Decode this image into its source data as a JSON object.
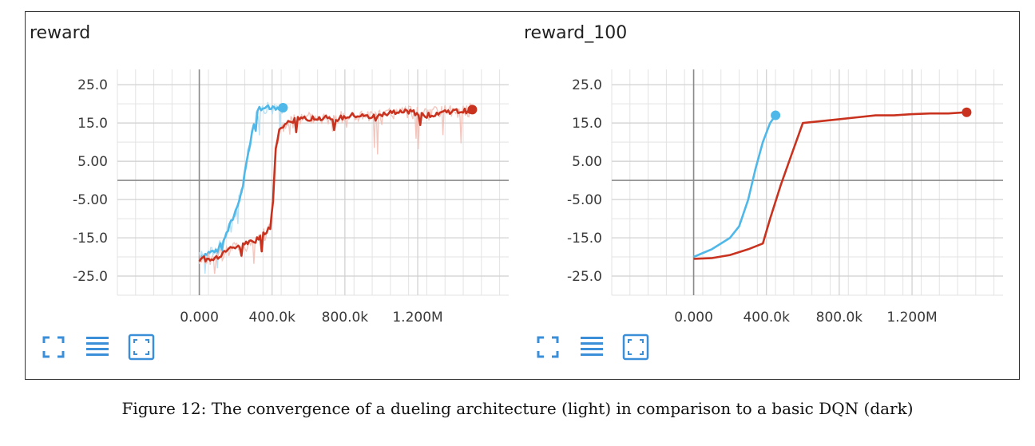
{
  "caption": "Figure 12: The convergence of a dueling architecture (light) in comparison to a basic DQN (dark)",
  "colors": {
    "light": "#4fb8e8",
    "dark": "#c8321e",
    "light_noise": "#a9dcf5",
    "dark_noise": "#f2bcb2",
    "tool": "#3b8fd9"
  },
  "toolbar": {
    "icons": [
      "fullscreen-icon",
      "list-icon",
      "fit-domain-icon"
    ]
  },
  "chart_data": [
    {
      "type": "line",
      "title": "reward",
      "xlim": [
        -450000,
        1700000
      ],
      "ylim": [
        -30,
        29
      ],
      "x_ticks": [
        0,
        400000,
        800000,
        1200000
      ],
      "x_tick_labels": [
        "0.000",
        "400.0k",
        "800.0k",
        "1.200M"
      ],
      "y_ticks": [
        25,
        15,
        5,
        -5,
        -15,
        -25
      ],
      "y_tick_labels": [
        "25.0",
        "15.0",
        "5.00",
        "-5.00",
        "-15.0",
        "-25.0"
      ],
      "grid": true,
      "series": [
        {
          "style": "light",
          "x": [
            0,
            50000,
            100000,
            150000,
            200000,
            230000,
            260000,
            300000,
            330000,
            370000,
            420000,
            460000
          ],
          "y": [
            -20,
            -19,
            -18,
            -14,
            -8,
            -3,
            5,
            15,
            19,
            19,
            18.5,
            19
          ]
        },
        {
          "style": "dark",
          "x": [
            0,
            60000,
            120000,
            180000,
            240000,
            300000,
            360000,
            390000,
            405000,
            420000,
            440000,
            480000,
            550000,
            650000,
            750000,
            850000,
            950000,
            1050000,
            1150000,
            1250000,
            1350000,
            1450000,
            1500000
          ],
          "y": [
            -20.5,
            -20.5,
            -19.5,
            -17.5,
            -17,
            -16,
            -14,
            -12,
            -5,
            8,
            13,
            15,
            16,
            16.5,
            16,
            17,
            16.5,
            17.5,
            18,
            17,
            18,
            18,
            18.5
          ]
        }
      ]
    },
    {
      "type": "line",
      "title": "reward_100",
      "xlim": [
        -450000,
        1700000
      ],
      "ylim": [
        -30,
        29
      ],
      "x_ticks": [
        0,
        400000,
        800000,
        1200000
      ],
      "x_tick_labels": [
        "0.000",
        "400.0k",
        "800.0k",
        "1.200M"
      ],
      "y_ticks": [
        25,
        15,
        5,
        -5,
        -15,
        -25
      ],
      "y_tick_labels": [
        "25.0",
        "15.0",
        "5.00",
        "-5.00",
        "-15.0",
        "-25.0"
      ],
      "grid": true,
      "series": [
        {
          "style": "light",
          "x": [
            0,
            100000,
            200000,
            250000,
            300000,
            340000,
            380000,
            420000,
            450000
          ],
          "y": [
            -20,
            -18,
            -15,
            -12,
            -5,
            3,
            10,
            15,
            17
          ]
        },
        {
          "style": "dark",
          "x": [
            0,
            100000,
            200000,
            300000,
            380000,
            420000,
            480000,
            540000,
            600000,
            700000,
            800000,
            900000,
            1000000,
            1100000,
            1200000,
            1300000,
            1400000,
            1500000
          ],
          "y": [
            -20.5,
            -20.3,
            -19.5,
            -18,
            -16.5,
            -10,
            -1,
            7,
            15,
            15.5,
            16,
            16.5,
            17,
            17,
            17.3,
            17.5,
            17.5,
            17.8
          ]
        }
      ]
    }
  ]
}
